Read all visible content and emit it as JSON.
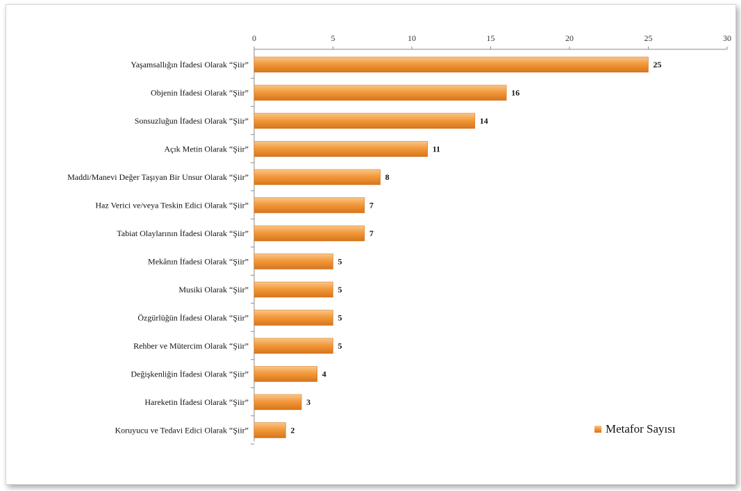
{
  "chart_data": {
    "type": "bar",
    "orientation": "horizontal",
    "categories": [
      "Yaşamsallığın İfadesi Olarak “Şiir”",
      "Objenin İfadesi Olarak “Şiir”",
      "Sonsuzluğun İfadesi Olarak “Şiir”",
      "Açık Metin Olarak “Şiir”",
      "Maddi/Manevi Değer Taşıyan Bir Unsur Olarak “Şiir”",
      "Haz Verici ve/veya Teskin Edici Olarak “Şiir”",
      "Tabiat Olaylarının İfadesi Olarak “Şiir”",
      "Mekânın İfadesi Olarak “Şiir”",
      "Musiki Olarak “Şiir”",
      "Özgürlüğün İfadesi Olarak “Şiir”",
      "Rehber ve Mütercim Olarak “Şiir”",
      "Değişkenliğin İfadesi Olarak “Şiir”",
      "Hareketin İfadesi Olarak “Şiir”",
      "Koruyucu ve Tedavi Edici Olarak “Şiir”"
    ],
    "series": [
      {
        "name": "Metafor Sayısı",
        "values": [
          25,
          16,
          14,
          11,
          8,
          7,
          7,
          5,
          5,
          5,
          5,
          4,
          3,
          2
        ],
        "color": "#f0922e"
      }
    ],
    "xlim": [
      0,
      30
    ],
    "xticks": [
      0,
      5,
      10,
      15,
      20,
      25,
      30
    ],
    "x_axis_position": "top",
    "title": "",
    "xlabel": "",
    "ylabel": "",
    "grid": false,
    "legend": "bottom-right",
    "data_labels": true
  }
}
